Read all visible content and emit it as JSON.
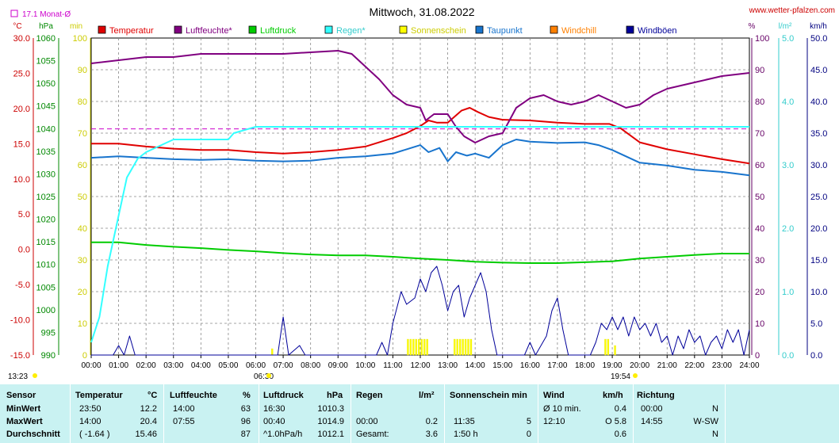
{
  "page": {
    "title": "Mittwoch, 31.08.2022",
    "source": "www.wetter-pfalzen.com",
    "month_avg_label": "17.1 Monat-Ø",
    "sunrise": "06:30",
    "sunset": "19:54",
    "left_time": "13:23"
  },
  "chart_data": {
    "type": "line",
    "x_ticks": [
      "00:00",
      "01:00",
      "02:00",
      "03:00",
      "04:00",
      "05:00",
      "06:00",
      "07:00",
      "08:00",
      "09:00",
      "10:00",
      "11:00",
      "12:00",
      "13:00",
      "14:00",
      "15:00",
      "16:00",
      "17:00",
      "18:00",
      "19:00",
      "20:00",
      "21:00",
      "22:00",
      "23:00",
      "24:00"
    ],
    "axes": {
      "temp": {
        "unit": "°C",
        "min": -15,
        "max": 30,
        "ticks": [
          "30.0",
          "25.0",
          "20.0",
          "15.0",
          "10.0",
          "5.0",
          "0.0",
          "-5.0",
          "-10.0",
          "-15.0"
        ],
        "color": "#cc0000"
      },
      "pressure": {
        "unit": "hPa",
        "min": 990,
        "max": 1060,
        "ticks": [
          "1060",
          "1055",
          "1050",
          "1045",
          "1040",
          "1035",
          "1030",
          "1025",
          "1020",
          "1015",
          "1010",
          "1005",
          "1000",
          "995",
          "990"
        ],
        "color": "#008800"
      },
      "minutes": {
        "unit": "min",
        "min": 0,
        "max": 100,
        "ticks": [
          "100",
          "90",
          "80",
          "70",
          "60",
          "50",
          "40",
          "30",
          "20",
          "10",
          "0"
        ],
        "color": "#cccc00"
      },
      "humidity": {
        "unit": "%",
        "min": 0,
        "max": 100,
        "ticks": [
          "100",
          "90",
          "80",
          "70",
          "60",
          "50",
          "40",
          "30",
          "20",
          "10",
          "0"
        ],
        "color": "#660066"
      },
      "rain": {
        "unit": "l/m²",
        "min": 0,
        "max": 5,
        "ticks": [
          "5.0",
          "4.0",
          "3.0",
          "2.0",
          "1.0",
          "0.0"
        ],
        "color": "#33cccc"
      },
      "wind": {
        "unit": "km/h",
        "min": 0,
        "max": 50,
        "ticks": [
          "50.0",
          "45.0",
          "40.0",
          "35.0",
          "30.0",
          "25.0",
          "20.0",
          "15.0",
          "10.0",
          "5.0",
          "0.0"
        ],
        "color": "#000080"
      }
    },
    "legend": [
      {
        "name": "Temperatur",
        "color": "#e00000"
      },
      {
        "name": "Luftfeuchte*",
        "color": "#800080"
      },
      {
        "name": "Luftdruck",
        "color": "#00cc00"
      },
      {
        "name": "Regen*",
        "color": "#33ffff"
      },
      {
        "name": "Sonnenschein",
        "color": "#ffff00"
      },
      {
        "name": "Taupunkt",
        "color": "#1874cd"
      },
      {
        "name": "Windchill",
        "color": "#ff8000"
      },
      {
        "name": "Windböen",
        "color": "#000099"
      }
    ],
    "month_avg_temp": 17.1,
    "series": {
      "temperature": {
        "axis": "temp",
        "color": "#e00000",
        "points": [
          [
            0,
            15.0
          ],
          [
            1,
            15.0
          ],
          [
            2,
            14.6
          ],
          [
            3,
            14.3
          ],
          [
            4,
            14.1
          ],
          [
            5,
            14.1
          ],
          [
            6,
            13.8
          ],
          [
            7,
            13.6
          ],
          [
            8,
            13.8
          ],
          [
            9,
            14.1
          ],
          [
            10,
            14.6
          ],
          [
            11,
            15.8
          ],
          [
            11.5,
            16.5
          ],
          [
            12,
            17.5
          ],
          [
            12.3,
            18.3
          ],
          [
            12.6,
            18.0
          ],
          [
            13,
            18.0
          ],
          [
            13.5,
            19.7
          ],
          [
            13.8,
            20.1
          ],
          [
            14.1,
            19.5
          ],
          [
            14.5,
            18.8
          ],
          [
            15,
            18.4
          ],
          [
            16,
            18.3
          ],
          [
            17,
            18.0
          ],
          [
            18,
            17.8
          ],
          [
            18.9,
            17.8
          ],
          [
            19.3,
            17.2
          ],
          [
            20,
            15.2
          ],
          [
            21,
            14.2
          ],
          [
            22,
            13.5
          ],
          [
            23,
            12.8
          ],
          [
            24,
            12.2
          ]
        ]
      },
      "humidity": {
        "axis": "humidity",
        "color": "#800080",
        "points": [
          [
            0,
            92
          ],
          [
            1,
            93
          ],
          [
            2,
            94
          ],
          [
            3,
            94
          ],
          [
            4,
            95
          ],
          [
            5,
            95
          ],
          [
            6,
            95
          ],
          [
            7,
            95
          ],
          [
            8,
            95.5
          ],
          [
            9,
            96
          ],
          [
            9.5,
            95
          ],
          [
            10,
            91
          ],
          [
            10.5,
            87
          ],
          [
            11,
            82
          ],
          [
            11.5,
            79
          ],
          [
            12,
            78
          ],
          [
            12.2,
            74
          ],
          [
            12.5,
            76
          ],
          [
            13,
            76
          ],
          [
            13.3,
            72
          ],
          [
            13.6,
            69
          ],
          [
            14,
            67
          ],
          [
            14.5,
            69
          ],
          [
            15,
            70
          ],
          [
            15.5,
            78
          ],
          [
            16,
            81
          ],
          [
            16.5,
            82
          ],
          [
            17,
            80
          ],
          [
            17.5,
            79
          ],
          [
            18,
            80
          ],
          [
            18.5,
            82
          ],
          [
            19,
            80
          ],
          [
            19.5,
            78
          ],
          [
            20,
            79
          ],
          [
            20.5,
            82
          ],
          [
            21,
            84
          ],
          [
            22,
            86
          ],
          [
            23,
            88
          ],
          [
            24,
            89
          ]
        ]
      },
      "pressure": {
        "axis": "pressure",
        "color": "#00cc00",
        "points": [
          [
            0,
            1014.9
          ],
          [
            1,
            1014.9
          ],
          [
            2,
            1014.3
          ],
          [
            3,
            1013.9
          ],
          [
            4,
            1013.6
          ],
          [
            5,
            1013.2
          ],
          [
            6,
            1012.9
          ],
          [
            7,
            1012.5
          ],
          [
            8,
            1012.2
          ],
          [
            9,
            1012.0
          ],
          [
            10,
            1012.0
          ],
          [
            11,
            1011.7
          ],
          [
            12,
            1011.3
          ],
          [
            13,
            1011.0
          ],
          [
            14,
            1010.6
          ],
          [
            15,
            1010.4
          ],
          [
            16,
            1010.3
          ],
          [
            17,
            1010.3
          ],
          [
            18,
            1010.5
          ],
          [
            19,
            1010.7
          ],
          [
            20,
            1011.3
          ],
          [
            21,
            1011.7
          ],
          [
            22,
            1012.1
          ],
          [
            23,
            1012.4
          ],
          [
            24,
            1012.4
          ]
        ]
      },
      "rain": {
        "axis": "rain",
        "color": "#33ffff",
        "points": [
          [
            0,
            0.2
          ],
          [
            0.3,
            0.6
          ],
          [
            0.6,
            1.4
          ],
          [
            1,
            2.2
          ],
          [
            1.3,
            2.8
          ],
          [
            1.7,
            3.1
          ],
          [
            2,
            3.2
          ],
          [
            2.5,
            3.3
          ],
          [
            3,
            3.4
          ],
          [
            3.5,
            3.4
          ],
          [
            4,
            3.4
          ],
          [
            5,
            3.4
          ],
          [
            5.2,
            3.5
          ],
          [
            5.6,
            3.55
          ],
          [
            6,
            3.6
          ],
          [
            24,
            3.6
          ]
        ]
      },
      "dewpoint": {
        "axis": "temp",
        "color": "#1874cd",
        "points": [
          [
            0,
            13.0
          ],
          [
            1,
            13.2
          ],
          [
            2,
            13.0
          ],
          [
            3,
            12.8
          ],
          [
            4,
            12.7
          ],
          [
            5,
            12.8
          ],
          [
            6,
            12.6
          ],
          [
            7,
            12.5
          ],
          [
            8,
            12.6
          ],
          [
            9,
            13.0
          ],
          [
            10,
            13.2
          ],
          [
            11,
            13.6
          ],
          [
            11.5,
            14.2
          ],
          [
            12,
            14.8
          ],
          [
            12.3,
            13.8
          ],
          [
            12.7,
            14.4
          ],
          [
            13,
            12.5
          ],
          [
            13.3,
            13.8
          ],
          [
            13.7,
            13.3
          ],
          [
            14,
            13.6
          ],
          [
            14.5,
            13.0
          ],
          [
            15,
            14.8
          ],
          [
            15.5,
            15.6
          ],
          [
            16,
            15.3
          ],
          [
            17,
            15.1
          ],
          [
            18,
            15.2
          ],
          [
            18.5,
            14.8
          ],
          [
            19,
            14.1
          ],
          [
            20,
            12.3
          ],
          [
            21,
            11.9
          ],
          [
            22,
            11.3
          ],
          [
            23,
            11.0
          ],
          [
            24,
            10.5
          ]
        ]
      },
      "gusts": {
        "axis": "wind",
        "color": "#000099",
        "points": [
          [
            0,
            0
          ],
          [
            0.8,
            0
          ],
          [
            1,
            1.5
          ],
          [
            1.2,
            0
          ],
          [
            1.4,
            3
          ],
          [
            1.6,
            0
          ],
          [
            6.8,
            0
          ],
          [
            7,
            6
          ],
          [
            7.2,
            0
          ],
          [
            7.6,
            1.5
          ],
          [
            7.8,
            0
          ],
          [
            10.4,
            0
          ],
          [
            10.6,
            2
          ],
          [
            10.8,
            0
          ],
          [
            11,
            5
          ],
          [
            11.3,
            10
          ],
          [
            11.5,
            8
          ],
          [
            11.8,
            9
          ],
          [
            12,
            12
          ],
          [
            12.2,
            10
          ],
          [
            12.4,
            13
          ],
          [
            12.6,
            14
          ],
          [
            12.8,
            11
          ],
          [
            13,
            7
          ],
          [
            13.2,
            10
          ],
          [
            13.4,
            11
          ],
          [
            13.6,
            6
          ],
          [
            13.8,
            9
          ],
          [
            14,
            11
          ],
          [
            14.2,
            13
          ],
          [
            14.4,
            10
          ],
          [
            14.6,
            4
          ],
          [
            14.8,
            0
          ],
          [
            15.8,
            0
          ],
          [
            16,
            2
          ],
          [
            16.2,
            0
          ],
          [
            16.6,
            3
          ],
          [
            16.8,
            7
          ],
          [
            17,
            9
          ],
          [
            17.2,
            4
          ],
          [
            17.4,
            0
          ],
          [
            18.2,
            0
          ],
          [
            18.4,
            2
          ],
          [
            18.6,
            5
          ],
          [
            18.8,
            4
          ],
          [
            19,
            6
          ],
          [
            19.2,
            4
          ],
          [
            19.4,
            6
          ],
          [
            19.6,
            3
          ],
          [
            19.8,
            6
          ],
          [
            20,
            4
          ],
          [
            20.2,
            5
          ],
          [
            20.4,
            3
          ],
          [
            20.6,
            5
          ],
          [
            20.8,
            2
          ],
          [
            21,
            3
          ],
          [
            21.2,
            0
          ],
          [
            21.4,
            3
          ],
          [
            21.6,
            1
          ],
          [
            21.8,
            4
          ],
          [
            22,
            2
          ],
          [
            22.2,
            3
          ],
          [
            22.4,
            0
          ],
          [
            22.6,
            2
          ],
          [
            22.8,
            3
          ],
          [
            23,
            1
          ],
          [
            23.2,
            4
          ],
          [
            23.4,
            2
          ],
          [
            23.6,
            4
          ],
          [
            23.8,
            0
          ],
          [
            24,
            4
          ]
        ]
      },
      "sunshine": {
        "axis": "minutes",
        "color": "#ffff00",
        "bars": [
          [
            11.55,
            5
          ],
          [
            11.65,
            5
          ],
          [
            11.75,
            5
          ],
          [
            11.85,
            5
          ],
          [
            11.95,
            5
          ],
          [
            12.05,
            5
          ],
          [
            12.15,
            5
          ],
          [
            12.25,
            5
          ],
          [
            13.25,
            5
          ],
          [
            13.35,
            5
          ],
          [
            13.45,
            5
          ],
          [
            13.55,
            5
          ],
          [
            13.65,
            5
          ],
          [
            13.75,
            5
          ],
          [
            13.85,
            5
          ],
          [
            18.75,
            5
          ],
          [
            18.85,
            5
          ],
          [
            19.1,
            3
          ],
          [
            6.6,
            2
          ]
        ]
      }
    }
  },
  "stats": {
    "headers": {
      "sensor": "Sensor",
      "temp": "Temperatur",
      "temp_unit": "°C",
      "hum": "Luftfeuchte",
      "hum_unit": "%",
      "press": "Luftdruck",
      "press_unit": "hPa",
      "rain": "Regen",
      "rain_unit": "l/m²",
      "sun": "Sonnenschein min",
      "wind": "Wind",
      "wind_unit": "km/h",
      "dir": "Richtung"
    },
    "rows": [
      {
        "label": "MinWert",
        "t_time": "23:50",
        "t_val": "12.2",
        "h_time": "14:00",
        "h_val": "63",
        "p_time": "16:30",
        "p_val": "1010.3",
        "r_time": "",
        "r_val": "",
        "s_time": "",
        "s_val": "",
        "w_time": "Ø 10 min.",
        "w_val": "0.4",
        "d_time": "00:00",
        "d_val": "N"
      },
      {
        "label": "MaxWert",
        "t_time": "14:00",
        "t_val": "20.4",
        "h_time": "07:55",
        "h_val": "96",
        "p_time": "00:40",
        "p_val": "1014.9",
        "r_time": "00:00",
        "r_val": "0.2",
        "s_time": "11:35",
        "s_val": "5",
        "w_time": "12:10",
        "w_val": "O 5.8",
        "d_time": "14:55",
        "d_val": "W-SW"
      },
      {
        "label": "Durchschnitt",
        "t_time": "( -1.64 )",
        "t_val": "15.46",
        "h_time": "",
        "h_val": "87",
        "p_time": "^1.0hPa/h",
        "p_val": "1012.1",
        "r_time": "Gesamt:",
        "r_val": "3.6",
        "s_time": "1:50 h",
        "s_val": "0",
        "w_time": "",
        "w_val": "0.6",
        "d_time": "",
        "d_val": "N"
      }
    ]
  }
}
